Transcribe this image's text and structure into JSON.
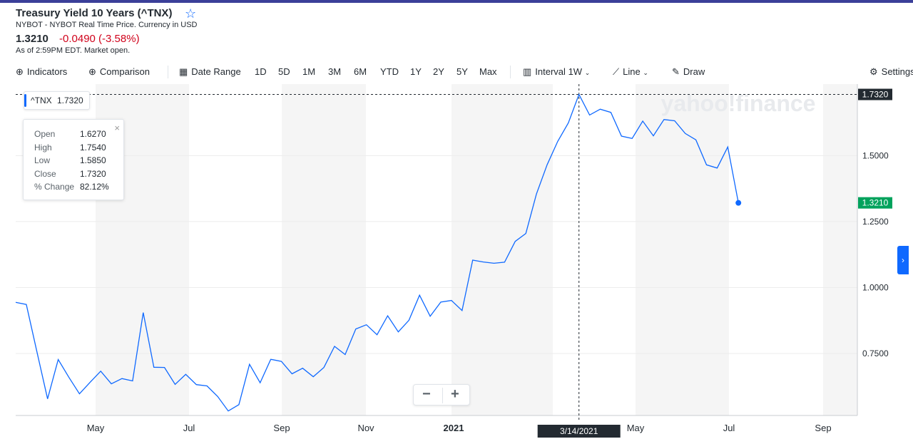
{
  "header": {
    "title": "Treasury Yield 10 Years (^TNX)",
    "subtitle": "NYBOT - NYBOT Real Time Price. Currency in USD",
    "price": "1.3210",
    "change": "-0.0490 (-3.58%)",
    "as_of": "As of 2:59PM EDT. Market open."
  },
  "toolbar": {
    "indicators": "Indicators",
    "comparison": "Comparison",
    "date_range": "Date Range",
    "ranges": [
      "1D",
      "5D",
      "1M",
      "3M",
      "6M",
      "YTD",
      "1Y",
      "2Y",
      "5Y",
      "Max"
    ],
    "interval_label": "Interval",
    "interval_value": "1W",
    "chart_type": "Line",
    "draw": "Draw",
    "settings": "Settings"
  },
  "legend": {
    "symbol": "^TNX",
    "value": "1.7320"
  },
  "tooltip": {
    "open_label": "Open",
    "open": "1.6270",
    "high_label": "High",
    "high": "1.7540",
    "low_label": "Low",
    "low": "1.5850",
    "close_label": "Close",
    "close": "1.7320",
    "change_label": "% Change",
    "change": "82.12%"
  },
  "watermark": "yahoo!finance",
  "colors": {
    "line": "#0f69ff",
    "last_price_badge": "#00a25c",
    "hover_badge": "#232a31",
    "negative": "#d0021b"
  },
  "chart_data": {
    "type": "line",
    "series": [
      {
        "name": "^TNX",
        "values": [
          0.944,
          0.936,
          0.756,
          0.578,
          0.727,
          0.66,
          0.597,
          0.641,
          0.683,
          0.635,
          0.655,
          0.646,
          0.905,
          0.698,
          0.697,
          0.633,
          0.671,
          0.632,
          0.627,
          0.587,
          0.532,
          0.556,
          0.709,
          0.639,
          0.728,
          0.72,
          0.673,
          0.694,
          0.662,
          0.697,
          0.777,
          0.746,
          0.843,
          0.859,
          0.821,
          0.893,
          0.832,
          0.876,
          0.971,
          0.891,
          0.945,
          0.951,
          0.913,
          1.104,
          1.097,
          1.092,
          1.096,
          1.175,
          1.205,
          1.355,
          1.465,
          1.554,
          1.624,
          1.732,
          1.654,
          1.676,
          1.664,
          1.574,
          1.565,
          1.631,
          1.575,
          1.637,
          1.632,
          1.584,
          1.56,
          1.465,
          1.453,
          1.533,
          1.321
        ]
      }
    ],
    "x_tick_labels": [
      "May",
      "Jul",
      "Sep",
      "Nov",
      "2021",
      "May",
      "Jul",
      "Sep"
    ],
    "y_tick_labels": [
      "0.7500",
      "1.0000",
      "1.2500",
      "1.5000"
    ],
    "y_ticks": [
      0.75,
      1.0,
      1.25,
      1.5
    ],
    "ylim": [
      0.515,
      1.755
    ],
    "hover_date": "3/14/2021",
    "hover_index": 53,
    "hover_value_label": "1.7320",
    "last_value_label": "1.3210",
    "grid": true
  }
}
